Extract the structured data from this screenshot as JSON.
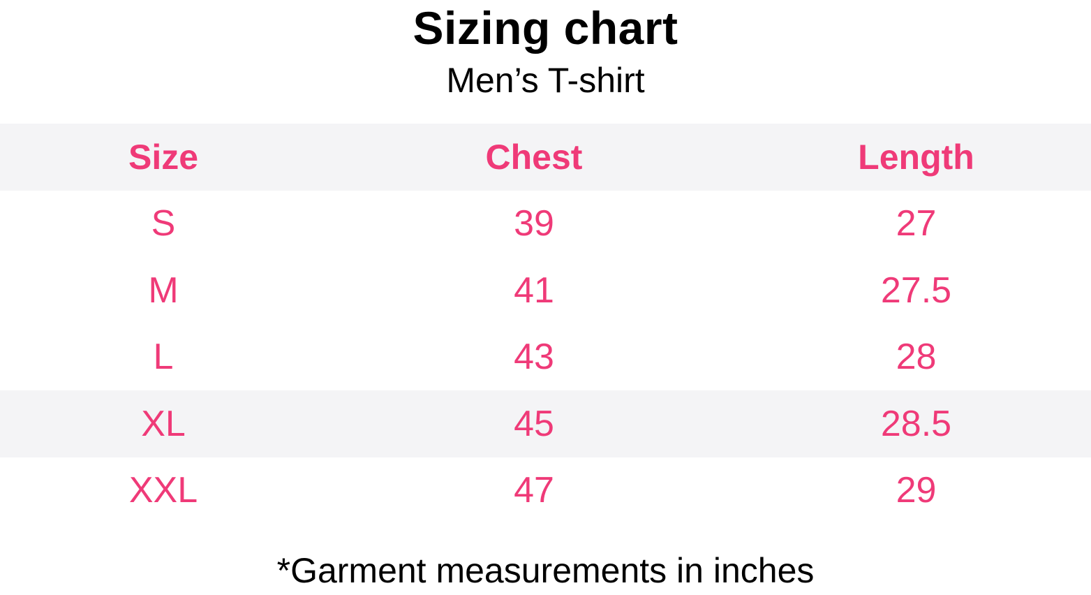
{
  "title": "Sizing chart",
  "subtitle": "Men’s T-shirt",
  "colors": {
    "accent": "#ef3a78",
    "row_shade": "#f4f4f6"
  },
  "table": {
    "headers": [
      "Size",
      "Chest",
      "Length"
    ],
    "rows": [
      [
        "S",
        "39",
        "27"
      ],
      [
        "M",
        "41",
        "27.5"
      ],
      [
        "L",
        "43",
        "28"
      ],
      [
        "XL",
        "45",
        "28.5"
      ],
      [
        "XXL",
        "47",
        "29"
      ]
    ],
    "shaded_rows": [
      "XL"
    ]
  },
  "footnote": "*Garment measurements in inches"
}
